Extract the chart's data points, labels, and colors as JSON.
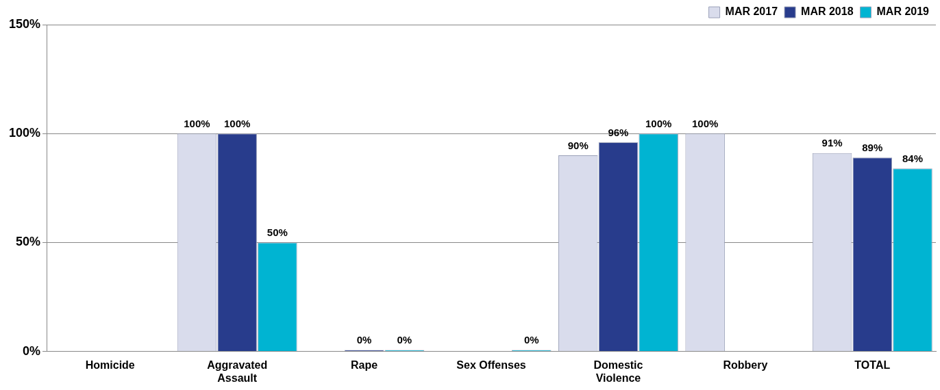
{
  "chart_data": {
    "type": "bar",
    "categories": [
      "Homicide",
      "Aggravated Assault",
      "Rape",
      "Sex Offenses",
      "Domestic Violence",
      "Robbery",
      "TOTAL"
    ],
    "series": [
      {
        "name": "MAR 2017",
        "color": "#d9dcec",
        "values": [
          null,
          100,
          null,
          null,
          90,
          100,
          91
        ],
        "value_labels": [
          null,
          "100%",
          null,
          null,
          "90%",
          "100%",
          "91%"
        ]
      },
      {
        "name": "MAR 2018",
        "color": "#283c8c",
        "values": [
          null,
          100,
          0,
          null,
          96,
          null,
          89
        ],
        "value_labels": [
          null,
          "100%",
          "0%",
          null,
          "96%",
          null,
          "89%"
        ]
      },
      {
        "name": "MAR 2019",
        "color": "#00b4d2",
        "values": [
          null,
          50,
          0,
          0,
          100,
          null,
          84
        ],
        "value_labels": [
          null,
          "50%",
          "0%",
          "0%",
          "100%",
          null,
          "84%"
        ]
      }
    ],
    "ylim": [
      0,
      150
    ],
    "yticks": [
      {
        "value": 0,
        "label": "0%"
      },
      {
        "value": 50,
        "label": "50%"
      },
      {
        "value": 100,
        "label": "100%"
      },
      {
        "value": 150,
        "label": "150%"
      }
    ],
    "grid": "y",
    "legend": "top right"
  }
}
